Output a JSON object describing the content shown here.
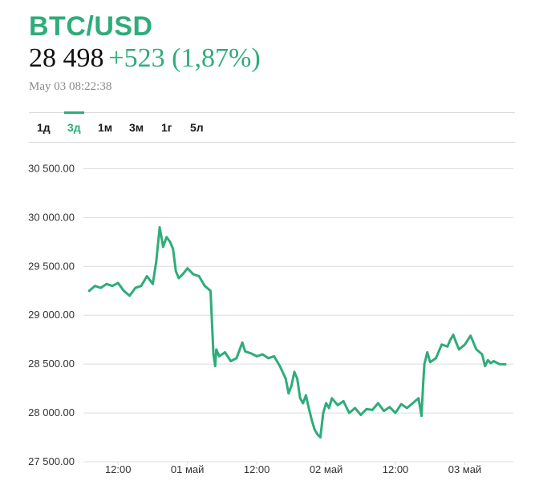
{
  "header": {
    "ticker": "BTC/USD",
    "price": "28 498",
    "change": "+523 (1,87%)",
    "timestamp": "May 03 08:22:38"
  },
  "tabs": [
    {
      "label": "1д",
      "active": false
    },
    {
      "label": "3д",
      "active": true
    },
    {
      "label": "1м",
      "active": false
    },
    {
      "label": "3м",
      "active": false
    },
    {
      "label": "1г",
      "active": false
    },
    {
      "label": "5л",
      "active": false
    }
  ],
  "colors": {
    "accent": "#2fac7a",
    "grid": "#dcdcdc",
    "text": "#111111",
    "muted": "#8a8a8a"
  },
  "chart_data": {
    "type": "line",
    "title": "",
    "xlabel": "",
    "ylabel": "",
    "ylim": [
      27500,
      30750
    ],
    "yticks": [
      "30 500.00",
      "30 000.00",
      "29 500.00",
      "29 000.00",
      "28 500.00",
      "28 000.00",
      "27 500.00"
    ],
    "ytick_values": [
      30500,
      30000,
      29500,
      29000,
      28500,
      28000,
      27500
    ],
    "xticks": [
      "12:00",
      "01 май",
      "12:00",
      "02 май",
      "12:00",
      "03 май"
    ],
    "xtick_hours": [
      12,
      24,
      36,
      48,
      60,
      72
    ],
    "xlim_hours": [
      6,
      80.4
    ],
    "grid": true,
    "series": [
      {
        "x_hours": [
          7.0,
          8.0,
          9.0,
          10.0,
          11.0,
          12.0,
          13.0,
          14.0,
          15.0,
          16.0,
          17.0,
          18.0,
          18.6,
          19.2,
          19.8,
          20.4,
          21.0,
          21.5,
          22.0,
          22.5,
          23.2,
          24.0,
          25.0,
          26.0,
          27.0,
          28.0,
          28.5,
          28.8,
          29.0,
          29.5,
          30.5,
          31.5,
          32.5,
          33.5,
          34.0,
          35.0,
          36.0,
          37.0,
          38.0,
          39.0,
          40.0,
          41.0,
          41.5,
          42.0,
          42.5,
          43.0,
          43.5,
          44.0,
          44.5,
          45.0,
          45.5,
          46.0,
          46.5,
          47.0,
          47.5,
          48.0,
          48.5,
          49.0,
          50.0,
          51.0,
          52.0,
          53.0,
          54.0,
          55.0,
          56.0,
          57.0,
          58.0,
          59.0,
          60.0,
          61.0,
          62.0,
          63.0,
          64.0,
          64.5,
          64.8,
          65.0,
          65.5,
          66.0,
          67.0,
          68.0,
          69.0,
          69.5,
          70.0,
          70.5,
          71.0,
          72.0,
          73.0,
          74.0,
          75.0,
          75.5,
          76.0,
          76.5,
          77.0,
          78.0,
          79.0
        ],
        "values": [
          29250,
          29300,
          29280,
          29320,
          29300,
          29330,
          29250,
          29200,
          29280,
          29300,
          29400,
          29320,
          29550,
          29900,
          29700,
          29800,
          29750,
          29680,
          29450,
          29380,
          29420,
          29480,
          29420,
          29400,
          29300,
          29250,
          28600,
          28480,
          28650,
          28580,
          28620,
          28530,
          28560,
          28720,
          28630,
          28610,
          28580,
          28600,
          28560,
          28580,
          28480,
          28350,
          28200,
          28280,
          28420,
          28350,
          28150,
          28100,
          28180,
          28050,
          27930,
          27830,
          27780,
          27750,
          28000,
          28100,
          28050,
          28150,
          28080,
          28120,
          28000,
          28050,
          27980,
          28040,
          28030,
          28100,
          28020,
          28060,
          28000,
          28090,
          28050,
          28100,
          28150,
          27970,
          28300,
          28500,
          28620,
          28520,
          28560,
          28700,
          28680,
          28750,
          28800,
          28720,
          28650,
          28700,
          28790,
          28650,
          28600,
          28480,
          28540,
          28510,
          28530,
          28500,
          28498
        ]
      }
    ]
  }
}
